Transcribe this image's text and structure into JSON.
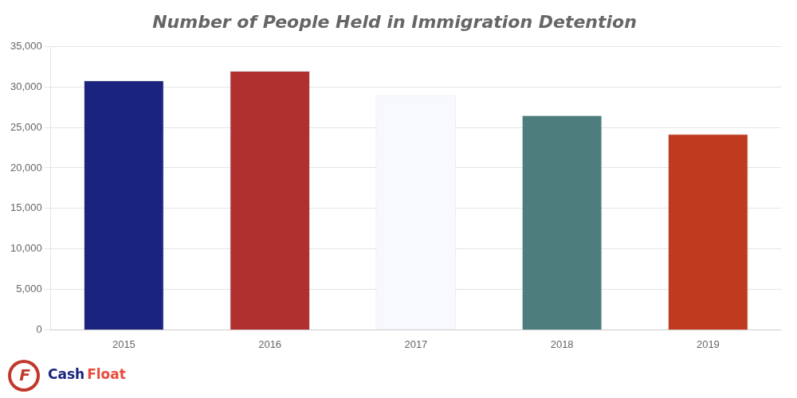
{
  "chart_data": {
    "type": "bar",
    "title": "Number of People Held in Immigration Detention",
    "categories": [
      "2015",
      "2016",
      "2017",
      "2018",
      "2019"
    ],
    "values": [
      30800,
      32000,
      29000,
      26500,
      24200
    ],
    "colors": [
      "#1a237e",
      "#b03030",
      "#f8f8ff",
      "#4d7d7d",
      "#bf3a1e"
    ],
    "ylim": [
      0,
      35000
    ],
    "yticks": [
      0,
      {
        "value": 5000,
        "label": "5,000"
      },
      {
        "value": 10000,
        "label": "10,000"
      },
      {
        "value": 15000,
        "label": "15,000"
      },
      {
        "value": 20000,
        "label": "20,000"
      },
      {
        "value": 25000,
        "label": "25,000"
      },
      {
        "value": 30000,
        "label": "30,000"
      },
      {
        "value": 35000,
        "label": "35,000"
      }
    ],
    "grid": true,
    "annotations": [
      {
        "text": "F",
        "color": "#c0392b"
      },
      {
        "text": "Cash",
        "color": "#1a237e"
      },
      {
        "text": "Float",
        "color": "#e74c3c"
      }
    ]
  }
}
